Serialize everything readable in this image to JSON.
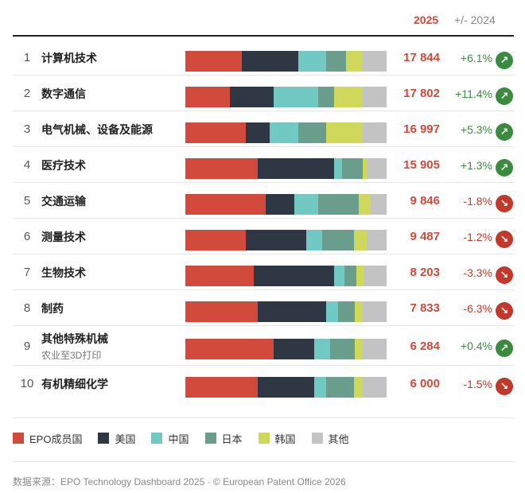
{
  "header": {
    "year_label": "2025",
    "change_label": "+/- 2024"
  },
  "chart_data": {
    "type": "bar",
    "stacked": true,
    "normalized_to_100_percent": true,
    "series_names": [
      "EPO成员国",
      "美国",
      "中国",
      "日本",
      "韩国",
      "其他"
    ],
    "colors": [
      "#d24a3c",
      "#2f3644",
      "#72c8c2",
      "#6a9d8b",
      "#cfd85a",
      "#c3c3c3"
    ],
    "rows": [
      {
        "rank": "1",
        "name": "计算机技术",
        "sub": "",
        "shares": [
          28,
          28,
          14,
          10,
          8,
          12
        ],
        "value": "17 844",
        "change": "+6.1%",
        "direction": "up",
        "icon": "arrow-up-right-icon"
      },
      {
        "rank": "2",
        "name": "数字通信",
        "sub": "",
        "shares": [
          22,
          22,
          22,
          8,
          14,
          12
        ],
        "value": "17 802",
        "change": "+11.4%",
        "direction": "up",
        "icon": "arrow-up-right-icon"
      },
      {
        "rank": "3",
        "name": "电气机械、设备及能源",
        "sub": "",
        "shares": [
          30,
          12,
          14,
          14,
          18,
          12
        ],
        "value": "16 997",
        "change": "+5.3%",
        "direction": "up",
        "icon": "arrow-up-right-icon"
      },
      {
        "rank": "4",
        "name": "医疗技术",
        "sub": "",
        "shares": [
          36,
          38,
          4,
          10,
          2,
          10
        ],
        "value": "15 905",
        "change": "+1.3%",
        "direction": "up",
        "icon": "arrow-up-right-icon"
      },
      {
        "rank": "5",
        "name": "交通运输",
        "sub": "",
        "shares": [
          40,
          14,
          12,
          20,
          6,
          8
        ],
        "value": "9 846",
        "change": "-1.8%",
        "direction": "down",
        "icon": "arrow-down-right-icon"
      },
      {
        "rank": "6",
        "name": "测量技术",
        "sub": "",
        "shares": [
          30,
          30,
          8,
          16,
          6,
          10
        ],
        "value": "9 487",
        "change": "-1.2%",
        "direction": "down",
        "icon": "arrow-down-right-icon"
      },
      {
        "rank": "7",
        "name": "生物技术",
        "sub": "",
        "shares": [
          34,
          40,
          5,
          6,
          4,
          11
        ],
        "value": "8 203",
        "change": "-3.3%",
        "direction": "down",
        "icon": "arrow-down-right-icon"
      },
      {
        "rank": "8",
        "name": "制药",
        "sub": "",
        "shares": [
          36,
          34,
          6,
          8,
          4,
          12
        ],
        "value": "7 833",
        "change": "-6.3%",
        "direction": "down",
        "icon": "arrow-down-right-icon"
      },
      {
        "rank": "9",
        "name": "其他特殊机械",
        "sub": "农业至3D打印",
        "shares": [
          44,
          20,
          8,
          12,
          4,
          12
        ],
        "value": "6 284",
        "change": "+0.4%",
        "direction": "up",
        "icon": "arrow-up-right-icon"
      },
      {
        "rank": "10",
        "name": "有机精细化学",
        "sub": "",
        "shares": [
          36,
          28,
          6,
          14,
          4,
          12
        ],
        "value": "6 000",
        "change": "-1.5%",
        "direction": "down",
        "icon": "arrow-down-right-icon"
      }
    ]
  },
  "footer": {
    "source": "数据来源：EPO Technology Dashboard 2025 · © European Patent Office 2026"
  }
}
